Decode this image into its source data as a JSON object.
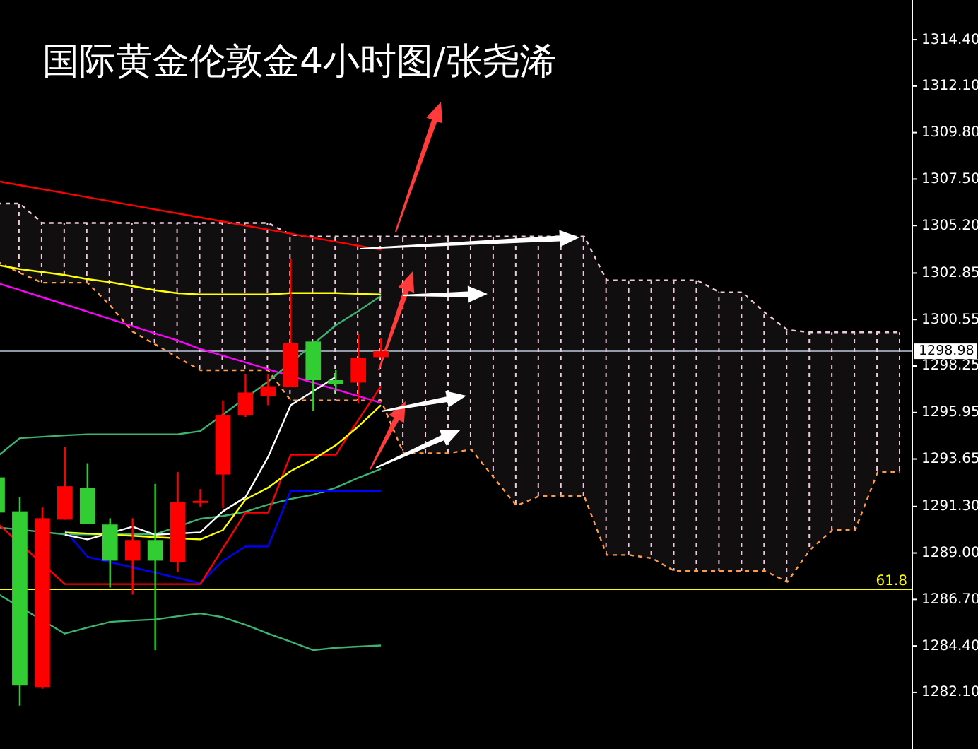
{
  "chart_data": {
    "type": "candlestick",
    "title": "国际黄金伦敦金4小时图/张尧浠",
    "categories": [
      null,
      null,
      null,
      null,
      null,
      null,
      null,
      null,
      null,
      null,
      null,
      null,
      null,
      null,
      null,
      null,
      null,
      null,
      null,
      null,
      null,
      null,
      null,
      null,
      null,
      null,
      null,
      null,
      null,
      null,
      null,
      null,
      null,
      null,
      null,
      null,
      null,
      null,
      null,
      null,
      null
    ],
    "ohlc": [
      [
        1292.74,
        1292.9,
        1290.8,
        1291.0
      ],
      [
        1291.06,
        1291.76,
        1281.44,
        1282.44
      ],
      [
        1282.37,
        1291.25,
        1282.28,
        1290.72
      ],
      [
        1290.65,
        1294.26,
        1290.65,
        1292.3
      ],
      [
        1292.23,
        1293.44,
        1290.44,
        1290.44
      ],
      [
        1290.41,
        1290.72,
        1287.29,
        1288.62
      ],
      [
        1288.62,
        1290.72,
        1286.94,
        1289.64
      ],
      [
        1289.64,
        1292.42,
        1284.19,
        1288.62
      ],
      [
        1288.55,
        1293.0,
        1288.04,
        1291.53
      ],
      [
        1291.52,
        1292.16,
        1291.28,
        1291.58
      ],
      [
        1292.88,
        1296.55,
        1291.23,
        1295.8
      ],
      [
        1295.8,
        1297.83,
        1295.73,
        1296.94
      ],
      [
        1296.78,
        1297.83,
        1296.31,
        1297.25
      ],
      [
        1297.2,
        1303.56,
        1297.2,
        1299.39
      ],
      [
        1299.46,
        1299.46,
        1296.03,
        1297.55
      ],
      [
        1297.55,
        1298.06,
        1296.99,
        1297.36
      ],
      [
        1297.43,
        1299.85,
        1296.38,
        1298.64
      ],
      [
        1298.69,
        1299.62,
        1298.69,
        1298.98
      ],
      null,
      null,
      null,
      null,
      null,
      null,
      null,
      null,
      null,
      null,
      null,
      null,
      null,
      null,
      null,
      null,
      null,
      null,
      null,
      null,
      null,
      null,
      null
    ],
    "colors": [
      "#32cd32",
      "#32cd32",
      "#ff0000",
      "#ff0000",
      "#32cd32",
      "#32cd32",
      "#ff0000",
      "#32cd32",
      "#ff0000",
      "#ff0000",
      "#ff0000",
      "#ff0000",
      "#ff0000",
      "#ff0000",
      "#32cd32",
      "#32cd32",
      "#ff0000",
      "#ff0000",
      null,
      null,
      null,
      null,
      null,
      null,
      null,
      null,
      null,
      null,
      null,
      null,
      null,
      null,
      null,
      null,
      null,
      null,
      null,
      null,
      null,
      null,
      null
    ],
    "series": [
      {
        "type": "line",
        "color": "#f0c8dc",
        "line_style": "dashed",
        "values": [
          1306.29,
          1306.29,
          1305.33,
          1305.33,
          1305.33,
          1305.33,
          1305.33,
          1305.33,
          1305.33,
          1305.33,
          1305.33,
          1305.33,
          1305.33,
          1304.75,
          1304.66,
          1304.66,
          1304.66,
          1304.66,
          1304.66,
          1304.66,
          1304.66,
          1304.66,
          1304.66,
          1304.66,
          1304.66,
          null,
          1304.66,
          1302.49,
          1302.49,
          1302.49,
          1302.49,
          1302.49,
          1301.9,
          1301.9,
          1300.9,
          1300.04,
          1299.92,
          1299.92,
          1299.92,
          1299.92,
          1299.92
        ],
        "lower": [
          1303.42,
          1302.86,
          1302.37,
          1302.37,
          1302.37,
          1301.25,
          1299.95,
          1299.32,
          1298.67,
          1298.04,
          1298.04,
          1298.04,
          1298.04,
          1296.55,
          1296.55,
          1296.55,
          1296.55,
          1296.55,
          1293.93,
          1293.93,
          1293.93,
          1294.12,
          1292.72,
          1291.34,
          1291.81,
          null,
          1291.81,
          1288.9,
          1288.9,
          1288.74,
          1288.11,
          1288.11,
          1288.11,
          1288.11,
          1288.11,
          1287.57,
          1289.16,
          1290.13,
          1290.13,
          1293.0,
          1293.0
        ],
        "upper": [
          1306.29,
          1306.29,
          1305.33,
          1305.33,
          1305.33,
          1305.33,
          1305.33,
          1305.33,
          1305.33,
          1305.33,
          1305.33,
          1305.33,
          1305.33,
          1304.75,
          1304.66,
          1304.66,
          1304.66,
          1304.66,
          1304.66,
          1304.66,
          1304.66,
          1304.66,
          1304.66,
          1304.66,
          1304.66,
          null,
          1304.66,
          1302.49,
          1302.49,
          1302.49,
          1302.49,
          1302.49,
          1301.9,
          1301.9,
          1300.9,
          1300.04,
          1299.92,
          1299.92,
          1299.92,
          1299.92,
          1299.92
        ]
      },
      {
        "type": "line",
        "color": "#ff9a4a",
        "line_style": "dashed",
        "values": [
          1303.42,
          1302.86,
          1302.37,
          1302.37,
          1302.37,
          1301.25,
          1299.95,
          1299.32,
          1298.67,
          1298.04,
          1298.04,
          1298.04,
          1298.04,
          1296.55,
          1296.55,
          1296.55,
          1296.55,
          1296.55,
          1293.93,
          1293.93,
          1293.93,
          1294.12,
          1292.72,
          1291.34,
          1291.81,
          1291.81,
          1291.81,
          1288.9,
          1288.9,
          1288.74,
          1288.11,
          1288.11,
          1288.11,
          1288.11,
          1288.11,
          1287.57,
          1289.16,
          1290.13,
          1290.13,
          1293.0,
          1293.0
        ]
      },
      {
        "type": "line",
        "color": "#ff0000",
        "values": [
          1307.4,
          1307.2,
          1307.0,
          1306.8,
          1306.6,
          1306.4,
          1306.2,
          1306.0,
          1305.8,
          1305.6,
          1305.4,
          1305.2,
          1305.0,
          1304.8,
          1304.6,
          1304.4,
          1304.2,
          1304.0,
          null,
          null,
          null,
          null,
          null,
          null,
          null,
          null,
          null,
          null,
          null,
          null,
          null,
          null,
          null,
          null,
          null,
          null,
          null,
          null,
          null,
          null,
          null
        ]
      },
      {
        "type": "line",
        "color": "#ffff00",
        "values": [
          1303.25,
          1303.05,
          1302.9,
          1302.75,
          1302.55,
          1302.4,
          1302.2,
          1302.0,
          1301.85,
          1301.79,
          1301.79,
          1301.79,
          1301.79,
          1301.86,
          1301.86,
          1301.86,
          1301.82,
          1301.79,
          null,
          null,
          null,
          null,
          null,
          null,
          null,
          null,
          null,
          null,
          null,
          null,
          null,
          null,
          null,
          null,
          null,
          null,
          null,
          null,
          null,
          null,
          null
        ]
      },
      {
        "type": "line",
        "color": "#ff00ff",
        "values": [
          1302.36,
          1302.01,
          1301.65,
          1301.3,
          1300.94,
          1300.58,
          1300.22,
          1299.86,
          1299.51,
          1299.09,
          1298.76,
          1298.43,
          1298.09,
          null,
          null,
          1297.09,
          1296.76,
          1296.43,
          null,
          null,
          null,
          null,
          null,
          null,
          null,
          null,
          null,
          null,
          null,
          null,
          null,
          null,
          null,
          null,
          null,
          null,
          null,
          null,
          null,
          null,
          null
        ]
      },
      {
        "type": "line",
        "color": "#3cb371",
        "values": [
          1293.77,
          1294.68,
          1294.75,
          1294.82,
          1294.87,
          1294.87,
          1294.87,
          1294.87,
          1294.87,
          1295.03,
          null,
          null,
          1297.48,
          null,
          null,
          1300.27,
          1300.97,
          1301.72,
          null,
          null,
          null,
          null,
          null,
          null,
          null,
          null,
          null,
          null,
          null,
          null,
          null,
          null,
          null,
          null,
          null,
          null,
          null,
          null,
          null,
          null,
          null
        ]
      },
      {
        "type": "line",
        "color": "#3cb371",
        "values": [
          1290.27,
          null,
          null,
          1289.92,
          1289.92,
          null,
          1289.92,
          1289.92,
          null,
          1290.69,
          1290.83,
          1291.04,
          1291.39,
          1291.67,
          1291.88,
          1292.23,
          1292.72,
          1293.16,
          null,
          null,
          null,
          null,
          null,
          null,
          null,
          null,
          null,
          null,
          null,
          null,
          null,
          null,
          null,
          null,
          null,
          null,
          null,
          null,
          null,
          null,
          null
        ]
      },
      {
        "type": "line",
        "color": "#3cb371",
        "values": [
          1286.99,
          null,
          null,
          1285.01,
          1285.31,
          1285.59,
          1285.66,
          1285.71,
          1285.87,
          1286.01,
          1285.82,
          1285.45,
          1285.01,
          1284.61,
          1284.19,
          1284.31,
          1284.37,
          1284.42,
          null,
          null,
          null,
          null,
          null,
          null,
          null,
          null,
          null,
          null,
          null,
          null,
          null,
          null,
          null,
          null,
          null,
          null,
          null,
          null,
          null,
          null,
          null
        ]
      },
      {
        "type": "line",
        "color": "#0000ff",
        "values": [
          null,
          null,
          null,
          1290.13,
          1288.81,
          null,
          null,
          null,
          null,
          1287.5,
          1288.62,
          1289.32,
          1289.32,
          1292.07,
          1292.07,
          1292.07,
          1292.07,
          1292.07,
          null,
          null,
          null,
          null,
          null,
          null,
          null,
          null,
          null,
          null,
          null,
          null,
          null,
          null,
          null,
          null,
          null,
          null,
          null,
          null,
          null,
          null,
          null
        ]
      },
      {
        "type": "line",
        "color": "#ff0000",
        "values": [
          1290.48,
          null,
          null,
          1287.46,
          1287.46,
          1287.46,
          1287.46,
          1287.46,
          1287.46,
          1287.46,
          1289.23,
          1290.99,
          1290.99,
          1293.86,
          1293.86,
          1293.86,
          1295.59,
          1297.25,
          null,
          null,
          null,
          null,
          null,
          null,
          null,
          null,
          null,
          null,
          null,
          null,
          null,
          null,
          null,
          null,
          null,
          null,
          null,
          null,
          null,
          null,
          null
        ]
      },
      {
        "type": "line",
        "color": "#ffff00",
        "values": [
          null,
          null,
          null,
          1290.02,
          1289.96,
          null,
          1289.85,
          1289.78,
          null,
          1289.67,
          1290.13,
          1291.65,
          1292.23,
          1293.05,
          1293.63,
          1294.33,
          1295.26,
          1296.31,
          null,
          null,
          null,
          null,
          null,
          null,
          null,
          null,
          null,
          null,
          null,
          null,
          null,
          null,
          null,
          null,
          null,
          null,
          null,
          null,
          null,
          null,
          null
        ]
      },
      {
        "type": "line",
        "color": "#ffffff",
        "values": [
          null,
          null,
          null,
          1289.9,
          1289.67,
          null,
          1290.3,
          1289.9,
          null,
          1290.02,
          1291.06,
          1291.76,
          1293.75,
          1296.31,
          null,
          1297.71,
          null,
          null,
          null,
          null,
          null,
          null,
          null,
          null,
          null,
          null,
          null,
          null,
          null,
          null,
          null,
          null,
          null,
          null,
          null,
          null,
          null,
          null,
          null,
          null,
          null
        ]
      }
    ],
    "ylim": [
      1279.3,
      1316.36
    ],
    "yticks": [
      {
        "value": 1314.4,
        "label": "1314.40"
      },
      {
        "value": 1312.1,
        "label": "1312.10"
      },
      {
        "value": 1309.8,
        "label": "1309.80"
      },
      {
        "value": 1307.5,
        "label": "1307.50"
      },
      {
        "value": 1305.2,
        "label": "1305.20"
      },
      {
        "value": 1302.85,
        "label": "1302.85"
      },
      {
        "value": 1300.55,
        "label": "1300.55"
      },
      {
        "value": 1298.25,
        "label": "1298.25"
      },
      {
        "value": 1295.95,
        "label": "1295.95"
      },
      {
        "value": 1293.65,
        "label": "1293.65"
      },
      {
        "value": 1291.3,
        "label": "1291.30"
      },
      {
        "value": 1289.0,
        "label": "1289.00"
      },
      {
        "value": 1286.7,
        "label": "1286.70"
      },
      {
        "value": 1284.4,
        "label": "1284.40"
      },
      {
        "value": 1282.1,
        "label": "1282.10"
      }
    ],
    "ref_lines": [
      {
        "axis": "y",
        "value": 1298.98,
        "label": "1298.98",
        "color": "#8c98a4"
      },
      {
        "axis": "y",
        "value": 1287.2,
        "color": "#ffff00"
      }
    ],
    "annotations": [
      {
        "text": "61.8",
        "y": 1287.2
      }
    ],
    "tick_labels": "y"
  }
}
